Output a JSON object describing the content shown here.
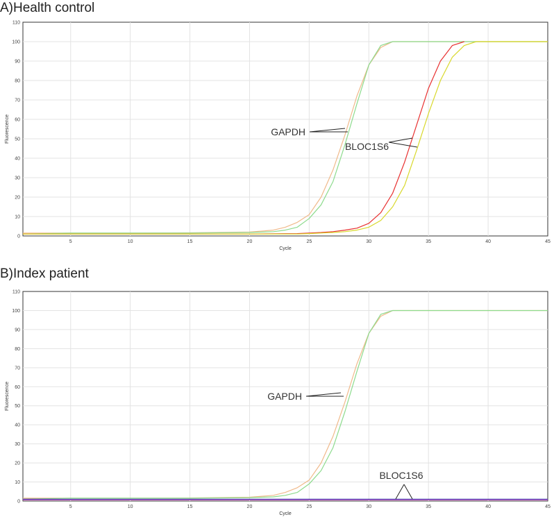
{
  "chart_data": [
    {
      "type": "line",
      "title": "A)Health control",
      "xlabel": "Cycle",
      "ylabel": "Fluorescence",
      "xlim": [
        1,
        45
      ],
      "ylim": [
        0,
        110
      ],
      "xticks": [
        5,
        10,
        15,
        20,
        25,
        30,
        35,
        40,
        45
      ],
      "yticks": [
        0,
        10,
        20,
        30,
        40,
        50,
        60,
        70,
        80,
        90,
        100,
        110
      ],
      "grid": true,
      "series": [
        {
          "color": "#f0b98a",
          "x": [
            1,
            5,
            10,
            15,
            20,
            22,
            23,
            24,
            25,
            26,
            27,
            28,
            29,
            30,
            31,
            32,
            45
          ],
          "y": [
            1.5,
            1.5,
            1.5,
            1.6,
            2,
            3,
            4.5,
            7,
            11,
            20,
            34,
            52,
            72,
            88,
            97,
            100,
            100
          ]
        },
        {
          "color": "#8ddb8d",
          "x": [
            1,
            5,
            10,
            15,
            20,
            22,
            23,
            24,
            25,
            26,
            27,
            28,
            29,
            30,
            31,
            32,
            45
          ],
          "y": [
            1,
            1.5,
            1.5,
            1.5,
            1.8,
            2.2,
            3,
            4.5,
            9,
            16,
            28,
            47,
            68,
            88,
            98,
            100,
            100
          ]
        },
        {
          "color": "#e83030",
          "x": [
            1,
            5,
            10,
            15,
            20,
            24,
            25,
            26,
            27,
            28,
            29,
            30,
            31,
            32,
            33,
            34,
            35,
            36,
            37,
            38
          ],
          "y": [
            1,
            1,
            1,
            1,
            1,
            1.2,
            1.5,
            1.8,
            2.2,
            3,
            4,
            6.5,
            12,
            22,
            38,
            57,
            76,
            90,
            98,
            100
          ]
        },
        {
          "color": "#d8d82a",
          "x": [
            1,
            5,
            10,
            15,
            20,
            24,
            25,
            26,
            27,
            28,
            29,
            30,
            31,
            32,
            33,
            34,
            35,
            36,
            37,
            38,
            39,
            45
          ],
          "y": [
            1,
            1,
            1,
            1,
            1,
            1,
            1.2,
            1.5,
            1.8,
            2.2,
            3,
            4.5,
            8,
            15,
            26,
            44,
            63,
            80,
            92,
            98,
            100,
            100
          ]
        }
      ],
      "annotations": [
        "GAPDH",
        "BLOC1S6"
      ]
    },
    {
      "type": "line",
      "title": "B)Index patient",
      "xlabel": "Cycle",
      "ylabel": "Fluorescence",
      "xlim": [
        1,
        45
      ],
      "ylim": [
        0,
        110
      ],
      "xticks": [
        5,
        10,
        15,
        20,
        25,
        30,
        35,
        40,
        45
      ],
      "yticks": [
        0,
        10,
        20,
        30,
        40,
        50,
        60,
        70,
        80,
        90,
        100,
        110
      ],
      "grid": true,
      "series": [
        {
          "color": "#f0b98a",
          "x": [
            1,
            5,
            10,
            15,
            20,
            22,
            23,
            24,
            25,
            26,
            27,
            28,
            29,
            30,
            31,
            32,
            45
          ],
          "y": [
            1.5,
            1.5,
            1.5,
            1.6,
            2,
            3,
            4.5,
            7,
            11,
            20,
            34,
            52,
            72,
            88,
            97,
            100,
            100
          ]
        },
        {
          "color": "#8ddb8d",
          "x": [
            1,
            5,
            10,
            15,
            20,
            22,
            23,
            24,
            25,
            26,
            27,
            28,
            29,
            30,
            31,
            32,
            45
          ],
          "y": [
            1,
            1.5,
            1.5,
            1.5,
            1.8,
            2.2,
            3,
            4.5,
            9,
            16,
            28,
            47,
            68,
            88,
            98,
            100,
            100
          ]
        },
        {
          "color": "#cc55cc",
          "x": [
            1,
            45
          ],
          "y": [
            0.6,
            0.6
          ]
        },
        {
          "color": "#3a3aa8",
          "x": [
            1,
            45
          ],
          "y": [
            1,
            1
          ]
        }
      ],
      "annotations": [
        "GAPDH",
        "BLOC1S6"
      ]
    }
  ]
}
